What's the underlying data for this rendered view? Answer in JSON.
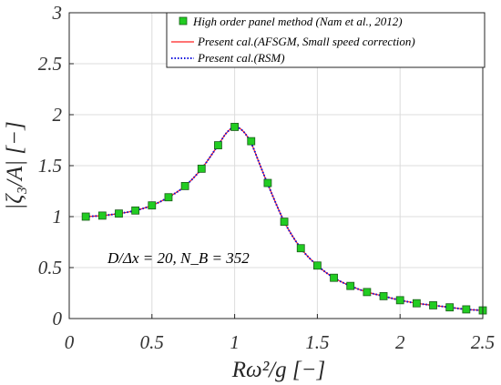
{
  "chart_data": {
    "type": "line",
    "xlabel": "Rω²/g  [−]",
    "ylabel": "|ζ₃/A|  [−]",
    "xlim": [
      0,
      2.5
    ],
    "ylim": [
      0,
      3
    ],
    "xticks": [
      0,
      0.5,
      1,
      1.5,
      2,
      2.5
    ],
    "yticks": [
      0,
      0.5,
      1,
      1.5,
      2,
      2.5,
      3
    ],
    "xtick_labels": [
      "0",
      "0.5",
      "1",
      "1.5",
      "2",
      "2.5"
    ],
    "ytick_labels": [
      "0",
      "0.5",
      "1",
      "1.5",
      "2",
      "2.5",
      "3"
    ],
    "grid": true,
    "legend_position": "top-right",
    "annotation": "D/Δx = 20, N_B = 352",
    "series": [
      {
        "name": "High order panel method (Nam et al., 2012)",
        "style": "markers",
        "color": "#22cc22",
        "x": [
          0.1,
          0.2,
          0.3,
          0.4,
          0.5,
          0.6,
          0.7,
          0.8,
          0.9,
          1.0,
          1.1,
          1.2,
          1.3,
          1.4,
          1.5,
          1.6,
          1.7,
          1.8,
          1.9,
          2.0,
          2.1,
          2.2,
          2.3,
          2.4,
          2.5
        ],
        "y": [
          1.0,
          1.01,
          1.03,
          1.06,
          1.11,
          1.19,
          1.3,
          1.47,
          1.7,
          1.88,
          1.74,
          1.33,
          0.95,
          0.69,
          0.52,
          0.4,
          0.32,
          0.26,
          0.22,
          0.18,
          0.15,
          0.13,
          0.11,
          0.09,
          0.08
        ]
      },
      {
        "name": "Present cal.(AFSGM, Small speed correction)",
        "style": "solid",
        "color": "#ff2020",
        "x": [
          0.1,
          0.2,
          0.3,
          0.4,
          0.5,
          0.6,
          0.7,
          0.8,
          0.9,
          0.95,
          1.0,
          1.05,
          1.1,
          1.15,
          1.2,
          1.3,
          1.4,
          1.5,
          1.6,
          1.7,
          1.8,
          1.9,
          2.0,
          2.1,
          2.2,
          2.3,
          2.4,
          2.5
        ],
        "y": [
          1.0,
          1.01,
          1.03,
          1.06,
          1.11,
          1.19,
          1.3,
          1.47,
          1.7,
          1.82,
          1.88,
          1.84,
          1.72,
          1.52,
          1.32,
          0.95,
          0.69,
          0.52,
          0.4,
          0.32,
          0.26,
          0.22,
          0.18,
          0.15,
          0.13,
          0.11,
          0.09,
          0.08
        ]
      },
      {
        "name": "Present cal.(RSM)",
        "style": "dotted",
        "color": "#1010dd",
        "x": [
          0.1,
          0.2,
          0.3,
          0.4,
          0.5,
          0.6,
          0.7,
          0.8,
          0.9,
          0.95,
          1.0,
          1.05,
          1.1,
          1.15,
          1.2,
          1.3,
          1.4,
          1.5,
          1.6,
          1.7,
          1.8,
          1.9,
          2.0,
          2.1,
          2.2,
          2.3,
          2.4,
          2.5
        ],
        "y": [
          1.0,
          1.01,
          1.03,
          1.06,
          1.11,
          1.19,
          1.3,
          1.47,
          1.7,
          1.82,
          1.88,
          1.84,
          1.72,
          1.52,
          1.32,
          0.95,
          0.69,
          0.52,
          0.4,
          0.32,
          0.26,
          0.22,
          0.18,
          0.15,
          0.13,
          0.11,
          0.09,
          0.08
        ]
      }
    ]
  }
}
